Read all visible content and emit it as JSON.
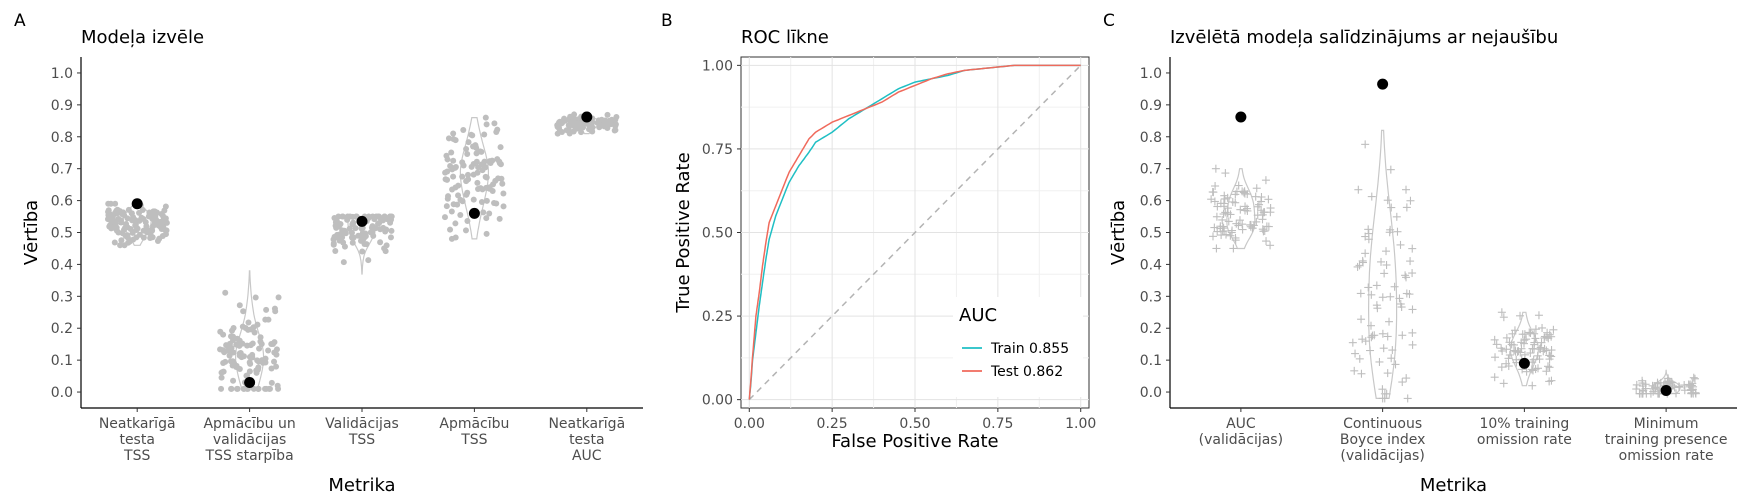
{
  "chart_data": [
    {
      "panel": "A",
      "type": "scatter",
      "title": "Modeļa izvēle",
      "xlabel": "Metrika",
      "ylabel": "Vērtība",
      "ylim": [
        -0.05,
        1.05
      ],
      "yticks": [
        0.0,
        0.1,
        0.2,
        0.3,
        0.4,
        0.5,
        0.6,
        0.7,
        0.8,
        0.9,
        1.0
      ],
      "categories": [
        [
          "Neatkarīgā",
          "testa",
          "TSS"
        ],
        [
          "Apmācību un",
          "validācijas",
          "TSS starpība"
        ],
        [
          "Validācijas",
          "TSS"
        ],
        [
          "Apmācību",
          "TSS"
        ],
        [
          "Neatkarīgā",
          "testa",
          "AUC"
        ]
      ],
      "groups": [
        {
          "center": 0.53,
          "min": 0.46,
          "max": 0.59,
          "n": 120
        },
        {
          "center": 0.1,
          "min": 0.01,
          "max": 0.38,
          "n": 120
        },
        {
          "center": 0.52,
          "min": 0.37,
          "max": 0.55,
          "n": 100
        },
        {
          "center": 0.68,
          "min": 0.48,
          "max": 0.86,
          "n": 110
        },
        {
          "center": 0.84,
          "min": 0.81,
          "max": 0.87,
          "n": 100
        }
      ],
      "selected": [
        0.59,
        0.03,
        0.535,
        0.56,
        0.862
      ],
      "point_color": "#bebebe",
      "selected_color": "#000000"
    },
    {
      "panel": "B",
      "type": "line",
      "title": "ROC līkne",
      "xlabel": "False Positive Rate",
      "ylabel": "True Positive Rate",
      "xlim": [
        -0.025,
        1.025
      ],
      "ylim": [
        -0.025,
        1.025
      ],
      "xticks": [
        "0.00",
        "0.25",
        "0.50",
        "0.75",
        "1.00"
      ],
      "yticks": [
        "0.00",
        "0.25",
        "0.50",
        "0.75",
        "1.00"
      ],
      "legend_title": "AUC",
      "legend_position": "bottom-right",
      "series": [
        {
          "name": "Train 0.855",
          "color": "#1fbfc4",
          "points": [
            [
              0,
              0
            ],
            [
              0.005,
              0.05
            ],
            [
              0.01,
              0.12
            ],
            [
              0.02,
              0.2
            ],
            [
              0.03,
              0.28
            ],
            [
              0.04,
              0.35
            ],
            [
              0.05,
              0.42
            ],
            [
              0.06,
              0.48
            ],
            [
              0.08,
              0.55
            ],
            [
              0.1,
              0.6
            ],
            [
              0.12,
              0.65
            ],
            [
              0.15,
              0.7
            ],
            [
              0.18,
              0.74
            ],
            [
              0.2,
              0.77
            ],
            [
              0.25,
              0.8
            ],
            [
              0.3,
              0.84
            ],
            [
              0.35,
              0.87
            ],
            [
              0.4,
              0.9
            ],
            [
              0.45,
              0.93
            ],
            [
              0.5,
              0.95
            ],
            [
              0.55,
              0.96
            ],
            [
              0.6,
              0.97
            ],
            [
              0.65,
              0.985
            ],
            [
              0.7,
              0.99
            ],
            [
              0.75,
              0.995
            ],
            [
              0.8,
              1.0
            ],
            [
              1.0,
              1.0
            ]
          ]
        },
        {
          "name": "Test 0.862",
          "color": "#f06a5c",
          "points": [
            [
              0,
              0
            ],
            [
              0.005,
              0.06
            ],
            [
              0.01,
              0.13
            ],
            [
              0.02,
              0.25
            ],
            [
              0.03,
              0.32
            ],
            [
              0.04,
              0.4
            ],
            [
              0.05,
              0.47
            ],
            [
              0.06,
              0.53
            ],
            [
              0.08,
              0.58
            ],
            [
              0.1,
              0.63
            ],
            [
              0.12,
              0.68
            ],
            [
              0.15,
              0.73
            ],
            [
              0.18,
              0.78
            ],
            [
              0.2,
              0.8
            ],
            [
              0.25,
              0.83
            ],
            [
              0.3,
              0.85
            ],
            [
              0.35,
              0.87
            ],
            [
              0.4,
              0.89
            ],
            [
              0.45,
              0.92
            ],
            [
              0.5,
              0.94
            ],
            [
              0.55,
              0.96
            ],
            [
              0.6,
              0.975
            ],
            [
              0.65,
              0.985
            ],
            [
              0.7,
              0.99
            ],
            [
              0.75,
              0.995
            ],
            [
              0.8,
              1.0
            ],
            [
              1.0,
              1.0
            ]
          ]
        }
      ],
      "reference_line": {
        "from": [
          0,
          0
        ],
        "to": [
          1,
          1
        ],
        "color": "#b3b3b3"
      }
    },
    {
      "panel": "C",
      "type": "scatter",
      "title": "Izvēlētā modeļa salīdzinājums ar nejaušību",
      "xlabel": "Metrika",
      "ylabel": "Vērtība",
      "ylim": [
        -0.05,
        1.05
      ],
      "yticks": [
        0.0,
        0.1,
        0.2,
        0.3,
        0.4,
        0.5,
        0.6,
        0.7,
        0.8,
        0.9,
        1.0
      ],
      "categories": [
        [
          "AUC",
          "(validācijas)"
        ],
        [
          "Continuous",
          "Boyce index",
          "(validācijas)"
        ],
        [
          "10% training",
          "omission rate"
        ],
        [
          "Minimum",
          "training presence",
          "omission rate"
        ]
      ],
      "groups": [
        {
          "center": 0.57,
          "min": 0.45,
          "max": 0.7,
          "n": 90
        },
        {
          "center": 0.3,
          "min": -0.02,
          "max": 0.82,
          "n": 80
        },
        {
          "center": 0.13,
          "min": 0.02,
          "max": 0.25,
          "n": 90
        },
        {
          "center": 0.01,
          "min": -0.005,
          "max": 0.07,
          "n": 70
        }
      ],
      "selected": [
        0.862,
        0.965,
        0.09,
        0.005
      ],
      "point_color": "#bebebe",
      "selected_color": "#000000"
    }
  ]
}
